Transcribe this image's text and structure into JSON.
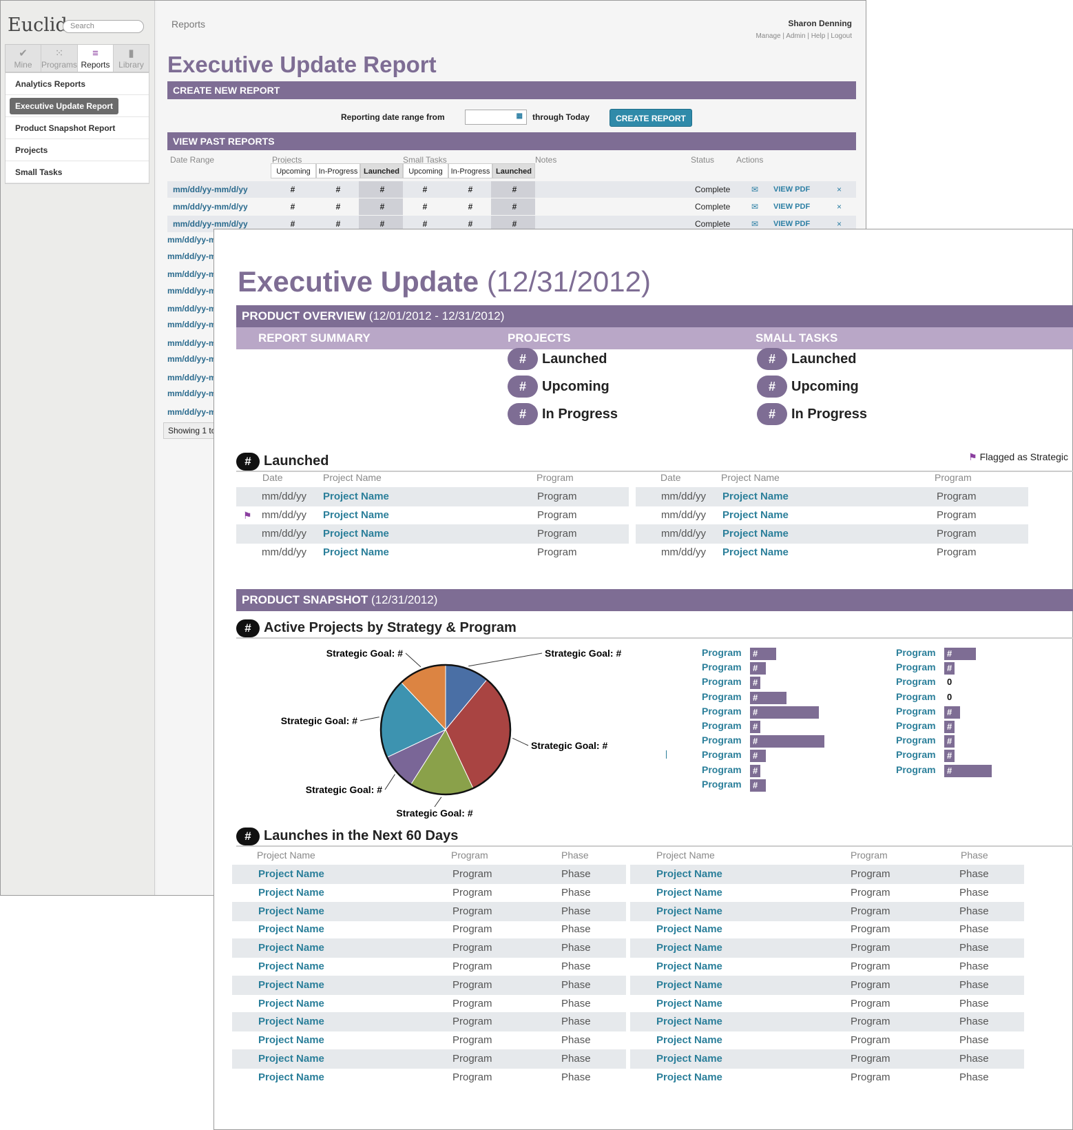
{
  "app": {
    "logo": "Euclid",
    "search_placeholder": "Search"
  },
  "nav": {
    "tabs": [
      {
        "label": "Mine",
        "icon": "check-icon"
      },
      {
        "label": "Programs",
        "icon": "dots-icon"
      },
      {
        "label": "Reports",
        "icon": "lines-icon"
      },
      {
        "label": "Library",
        "icon": "book-icon"
      }
    ],
    "submenu": [
      "Analytics Reports",
      "Executive Update Report",
      "Product Snapshot Report",
      "Projects",
      "Small Tasks"
    ]
  },
  "header": {
    "breadcrumb": "Reports",
    "user": "Sharon Denning",
    "links": "Manage |  Admin |  Help |  Logout"
  },
  "page": {
    "title": "Executive Update Report",
    "create_bar": "CREATE NEW REPORT",
    "date_label": "Reporting date range from",
    "through": "through Today",
    "create_button": "CREATE REPORT",
    "past_bar": "VIEW PAST REPORTS",
    "col_date": "Date Range",
    "col_projects": "Projects",
    "col_small": "Small Tasks",
    "col_notes": "Notes",
    "col_status": "Status",
    "col_actions": "Actions",
    "sub_upcoming": "Upcoming",
    "sub_inprogress": "In-Progress",
    "sub_launched": "Launched",
    "rows": [
      {
        "date": "mm/dd/yy-mm/d/yy",
        "status": "Complete",
        "action": "VIEW PDF"
      },
      {
        "date": "mm/dd/yy-mm/d/yy",
        "status": "Complete",
        "action": "VIEW PDF"
      },
      {
        "date": "mm/dd/yy-mm/d/yy",
        "status": "Complete",
        "action": "VIEW PDF"
      }
    ],
    "hash": "#",
    "clipped_date": "mm/dd/yy-m",
    "showing": "Showing 1 to"
  },
  "report": {
    "title": "Executive Update",
    "date": "(12/31/2012)",
    "overview_bar": "PRODUCT OVERVIEW",
    "overview_range": "(12/01/2012 - 12/31/2012)",
    "sum_label": "REPORT SUMMARY",
    "proj_label": "PROJECTS",
    "small_label": "SMALL TASKS",
    "stat_launched": "Launched",
    "stat_upcoming": "Upcoming",
    "stat_inprogress": "In Progress",
    "hash": "#",
    "launched_head": "Launched",
    "flag_legend": "Flagged as Strategic",
    "col_date": "Date",
    "col_project": "Project Name",
    "col_program": "Program",
    "col_phase": "Phase",
    "cell_date": "mm/dd/yy",
    "cell_project": "Project Name",
    "cell_program": "Program",
    "cell_phase": "Phase",
    "snapshot_bar": "PRODUCT SNAPSHOT",
    "snapshot_date": "(12/31/2012)",
    "active_head": "Active Projects by Strategy & Program",
    "launches_head": "Launches in the Next 60 Days",
    "goal_label": "Strategic Goal: #",
    "zero": "0"
  },
  "colors": {
    "accent": "#7e6d94",
    "accent_light": "#b9a7c7",
    "link": "#2b7f9a",
    "button": "#2f8aa9"
  },
  "chart_data": {
    "type": "pie",
    "series": [
      {
        "label": "Strategic Goal: #",
        "value": 11,
        "color": "#4a6fa5"
      },
      {
        "label": "Strategic Goal: #",
        "value": 32,
        "color": "#a94442"
      },
      {
        "label": "Strategic Goal: #",
        "value": 16,
        "color": "#8aa14a"
      },
      {
        "label": "Strategic Goal: #",
        "value": 9,
        "color": "#7a6697"
      },
      {
        "label": "Strategic Goal: #",
        "value": 20,
        "color": "#3d93b0"
      },
      {
        "label": "Strategic Goal: #",
        "value": 12,
        "color": "#dc8442"
      }
    ]
  },
  "bars": {
    "left": [
      {
        "label": "Program",
        "value": 38,
        "text": "#"
      },
      {
        "label": "Program",
        "value": 23,
        "text": "#"
      },
      {
        "label": "Program",
        "value": 15,
        "text": "#"
      },
      {
        "label": "Program",
        "value": 53,
        "text": "#"
      },
      {
        "label": "Program",
        "value": 100,
        "text": "#"
      },
      {
        "label": "Program",
        "value": 15,
        "text": "#"
      },
      {
        "label": "Program",
        "value": 108,
        "text": "#"
      },
      {
        "label": "Program",
        "value": 23,
        "text": "#"
      },
      {
        "label": "Program",
        "value": 15,
        "text": "#"
      },
      {
        "label": "Program",
        "value": 23,
        "text": "#"
      }
    ],
    "right": [
      {
        "label": "Program",
        "value": 46,
        "text": "#"
      },
      {
        "label": "Program",
        "value": 15,
        "text": "#"
      },
      {
        "label": "Program",
        "value": 0,
        "text": "0"
      },
      {
        "label": "Program",
        "value": 0,
        "text": "0"
      },
      {
        "label": "Program",
        "value": 23,
        "text": "#"
      },
      {
        "label": "Program",
        "value": 15,
        "text": "#"
      },
      {
        "label": "Program",
        "value": 15,
        "text": "#"
      },
      {
        "label": "Program",
        "value": 15,
        "text": "#"
      },
      {
        "label": "Program",
        "value": 69,
        "text": "#"
      }
    ]
  }
}
